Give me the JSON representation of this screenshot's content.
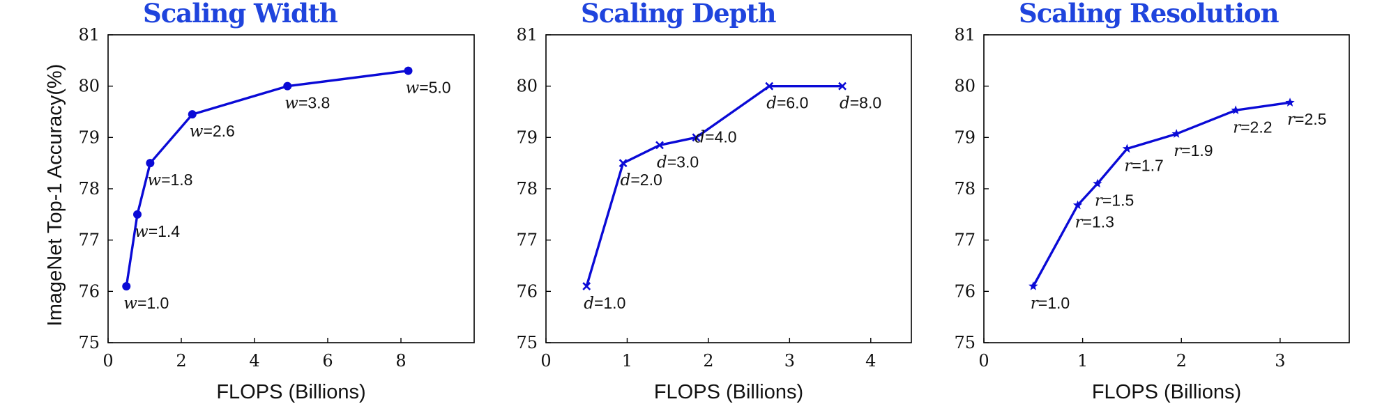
{
  "figure": {
    "ylabel": "ImageNet Top-1 Accuracy(%)",
    "line_color": "#0a0ad6",
    "title_color": "#1f44dd"
  },
  "chart_data": [
    {
      "type": "line",
      "title": "Scaling Width",
      "xlabel": "FLOPS (Billions)",
      "ylabel": "ImageNet Top-1 Accuracy(%)",
      "xlim": [
        0,
        10
      ],
      "ylim": [
        75,
        81
      ],
      "xticks": [
        0,
        2,
        4,
        6,
        8
      ],
      "yticks": [
        75,
        76,
        77,
        78,
        79,
        80,
        81
      ],
      "marker": "circle",
      "grid": false,
      "series": [
        {
          "x": [
            0.5,
            0.8,
            1.15,
            2.3,
            4.9,
            8.2
          ],
          "y": [
            76.1,
            77.5,
            78.5,
            79.45,
            80.0,
            80.3
          ],
          "labels": [
            {
              "var": "w",
              "text": "=1.0"
            },
            {
              "var": "w",
              "text": "=1.4"
            },
            {
              "var": "w",
              "text": "=1.8"
            },
            {
              "var": "w",
              "text": "=2.6"
            },
            {
              "var": "w",
              "text": "=3.8"
            },
            {
              "var": "w",
              "text": "=5.0"
            }
          ]
        }
      ]
    },
    {
      "type": "line",
      "title": "Scaling Depth",
      "xlabel": "FLOPS (Billions)",
      "ylabel": "",
      "xlim": [
        0,
        4.5
      ],
      "ylim": [
        75,
        81
      ],
      "xticks": [
        0,
        1,
        2,
        3,
        4
      ],
      "yticks": [
        75,
        76,
        77,
        78,
        79,
        80,
        81
      ],
      "marker": "x",
      "grid": false,
      "series": [
        {
          "x": [
            0.5,
            0.95,
            1.4,
            1.85,
            2.75,
            3.65
          ],
          "y": [
            76.1,
            78.5,
            78.85,
            79.0,
            80.0,
            80.0
          ],
          "labels": [
            {
              "var": "d",
              "text": "=1.0"
            },
            {
              "var": "d",
              "text": "=2.0"
            },
            {
              "var": "d",
              "text": "=3.0"
            },
            {
              "var": "d",
              "text": "=4.0"
            },
            {
              "var": "d",
              "text": "=6.0"
            },
            {
              "var": "d",
              "text": "=8.0"
            }
          ]
        }
      ]
    },
    {
      "type": "line",
      "title": "Scaling Resolution",
      "xlabel": "FLOPS (Billions)",
      "ylabel": "",
      "xlim": [
        0,
        3.7
      ],
      "ylim": [
        75,
        81
      ],
      "xticks": [
        0,
        1,
        2,
        3
      ],
      "yticks": [
        75,
        76,
        77,
        78,
        79,
        80,
        81
      ],
      "marker": "star",
      "grid": false,
      "series": [
        {
          "x": [
            0.5,
            0.95,
            1.15,
            1.45,
            1.95,
            2.55,
            3.1
          ],
          "y": [
            76.1,
            77.68,
            78.1,
            78.78,
            79.07,
            79.53,
            79.68
          ],
          "labels": [
            {
              "var": "r",
              "text": "=1.0"
            },
            {
              "var": "r",
              "text": "=1.3"
            },
            {
              "var": "r",
              "text": "=1.5"
            },
            {
              "var": "r",
              "text": "=1.7"
            },
            {
              "var": "r",
              "text": "=1.9"
            },
            {
              "var": "r",
              "text": "=2.2"
            },
            {
              "var": "r",
              "text": "=2.5"
            }
          ]
        }
      ]
    }
  ]
}
